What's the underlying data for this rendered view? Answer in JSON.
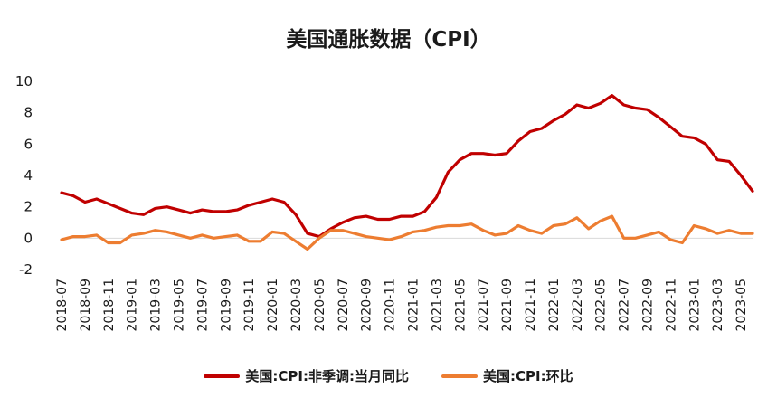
{
  "chart_data": {
    "type": "line",
    "title": "美国通胀数据（CPI）",
    "xlabel": "",
    "ylabel": "",
    "ylim": [
      -2,
      10
    ],
    "yticks": [
      "10",
      "8",
      "6",
      "4",
      "2",
      "0",
      "-2"
    ],
    "x": [
      "2018-07",
      "2018-08",
      "2018-09",
      "2018-10",
      "2018-11",
      "2018-12",
      "2019-01",
      "2019-02",
      "2019-03",
      "2019-04",
      "2019-05",
      "2019-06",
      "2019-07",
      "2019-08",
      "2019-09",
      "2019-10",
      "2019-11",
      "2019-12",
      "2020-01",
      "2020-02",
      "2020-03",
      "2020-04",
      "2020-05",
      "2020-06",
      "2020-07",
      "2020-08",
      "2020-09",
      "2020-10",
      "2020-11",
      "2020-12",
      "2021-01",
      "2021-02",
      "2021-03",
      "2021-04",
      "2021-05",
      "2021-06",
      "2021-07",
      "2021-08",
      "2021-09",
      "2021-10",
      "2021-11",
      "2021-12",
      "2022-01",
      "2022-02",
      "2022-03",
      "2022-04",
      "2022-05",
      "2022-06",
      "2022-07",
      "2022-08",
      "2022-09",
      "2022-10",
      "2022-11",
      "2022-12",
      "2023-01",
      "2023-02",
      "2023-03",
      "2023-04",
      "2023-05",
      "2023-06"
    ],
    "xtick_labels": [
      "2018-07",
      "2018-09",
      "2018-11",
      "2019-01",
      "2019-03",
      "2019-05",
      "2019-07",
      "2019-09",
      "2019-11",
      "2020-01",
      "2020-03",
      "2020-05",
      "2020-07",
      "2020-09",
      "2020-11",
      "2021-01",
      "2021-03",
      "2021-05",
      "2021-07",
      "2021-09",
      "2021-11",
      "2022-01",
      "2022-03",
      "2022-05",
      "2022-07",
      "2022-09",
      "2022-11",
      "2023-01",
      "2023-03",
      "2023-05"
    ],
    "series": [
      {
        "name": "美国:CPI:非季调:当月同比",
        "color": "#C00000",
        "values": [
          2.9,
          2.7,
          2.3,
          2.5,
          2.2,
          1.9,
          1.6,
          1.5,
          1.9,
          2.0,
          1.8,
          1.6,
          1.8,
          1.7,
          1.7,
          1.8,
          2.1,
          2.3,
          2.5,
          2.3,
          1.5,
          0.3,
          0.1,
          0.6,
          1.0,
          1.3,
          1.4,
          1.2,
          1.2,
          1.4,
          1.4,
          1.7,
          2.6,
          4.2,
          5.0,
          5.4,
          5.4,
          5.3,
          5.4,
          6.2,
          6.8,
          7.0,
          7.5,
          7.9,
          8.5,
          8.3,
          8.6,
          9.1,
          8.5,
          8.3,
          8.2,
          7.7,
          7.1,
          6.5,
          6.4,
          6.0,
          5.0,
          4.9,
          4.0,
          3.0
        ]
      },
      {
        "name": "美国:CPI:环比",
        "color": "#ED7D31",
        "values": [
          -0.1,
          0.1,
          0.1,
          0.2,
          -0.3,
          -0.3,
          0.2,
          0.3,
          0.5,
          0.4,
          0.2,
          0.0,
          0.2,
          0.0,
          0.1,
          0.2,
          -0.2,
          -0.2,
          0.4,
          0.3,
          -0.2,
          -0.7,
          0.0,
          0.5,
          0.5,
          0.3,
          0.1,
          0.0,
          -0.1,
          0.1,
          0.4,
          0.5,
          0.7,
          0.8,
          0.8,
          0.9,
          0.5,
          0.2,
          0.3,
          0.8,
          0.5,
          0.3,
          0.8,
          0.9,
          1.3,
          0.6,
          1.1,
          1.4,
          0.0,
          0.0,
          0.2,
          0.4,
          -0.1,
          -0.3,
          0.8,
          0.6,
          0.3,
          0.5,
          0.3,
          0.3
        ]
      }
    ],
    "grid": false,
    "legend_position": "bottom"
  }
}
